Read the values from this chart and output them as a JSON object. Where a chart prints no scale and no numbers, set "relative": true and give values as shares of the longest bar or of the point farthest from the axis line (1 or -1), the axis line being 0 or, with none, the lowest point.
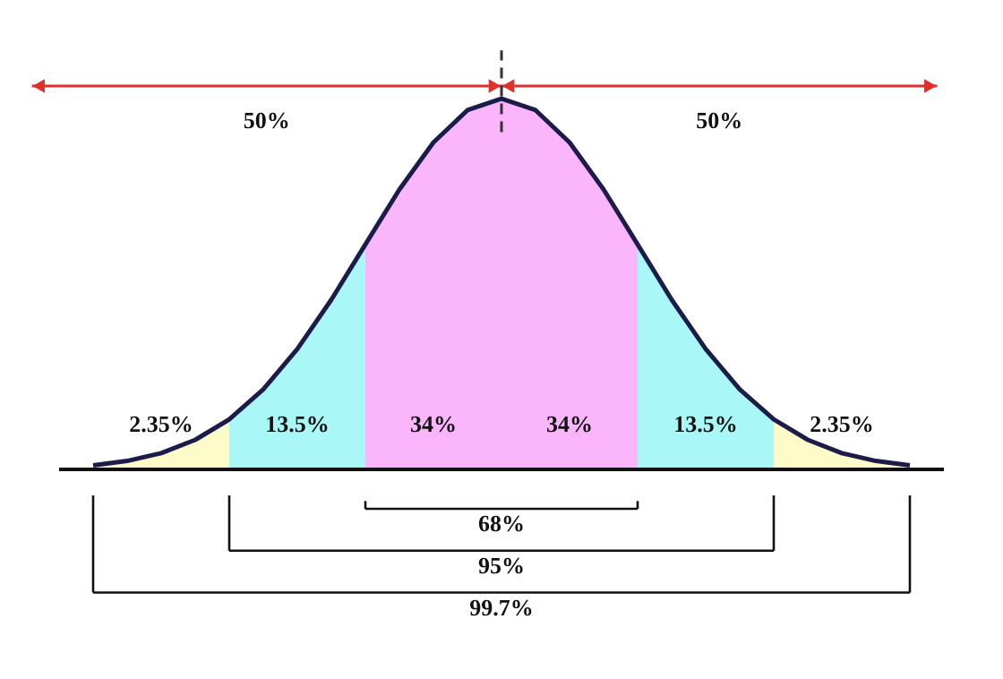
{
  "chart_data": {
    "type": "line",
    "relative": true,
    "tick_labels": false,
    "categories": [
      null,
      null,
      null,
      null,
      null,
      null,
      null,
      null,
      null,
      null,
      null,
      null,
      null,
      null,
      null,
      null,
      null,
      null,
      null,
      null,
      null,
      null,
      null,
      null,
      null
    ],
    "series": [
      {
        "type": "area",
        "name": "2.35%",
        "color": "#fdfbc8",
        "values": [
          0.011,
          0.023,
          0.044,
          0.08,
          0.135,
          null,
          null,
          null,
          null,
          null,
          null,
          null,
          null,
          null,
          null,
          null,
          null,
          null,
          null,
          null,
          null,
          null,
          null,
          null,
          null
        ]
      },
      {
        "type": "area",
        "name": "13.5%",
        "color": "#aaf7f7",
        "values": [
          null,
          null,
          null,
          null,
          0.135,
          0.216,
          0.325,
          0.458,
          0.607,
          null,
          null,
          null,
          null,
          null,
          null,
          null,
          null,
          null,
          null,
          null,
          null,
          null,
          null,
          null,
          null
        ]
      },
      {
        "type": "area",
        "name": "34%",
        "color": "#fbb6fb",
        "values": [
          null,
          null,
          null,
          null,
          null,
          null,
          null,
          null,
          0.607,
          0.755,
          0.882,
          0.969,
          1,
          null,
          null,
          null,
          null,
          null,
          null,
          null,
          null,
          null,
          null,
          null,
          null
        ]
      },
      {
        "type": "area",
        "name": "34%",
        "color": "#fbb6fb",
        "values": [
          null,
          null,
          null,
          null,
          null,
          null,
          null,
          null,
          null,
          null,
          null,
          null,
          1,
          0.969,
          0.882,
          0.755,
          0.607,
          null,
          null,
          null,
          null,
          null,
          null,
          null,
          null
        ]
      },
      {
        "type": "area",
        "name": "13.5%",
        "color": "#aaf7f7",
        "values": [
          null,
          null,
          null,
          null,
          null,
          null,
          null,
          null,
          null,
          null,
          null,
          null,
          null,
          null,
          null,
          null,
          0.607,
          0.458,
          0.325,
          0.216,
          0.135,
          null,
          null,
          null,
          null
        ]
      },
      {
        "type": "area",
        "name": "2.35%",
        "color": "#fdfbc8",
        "values": [
          null,
          null,
          null,
          null,
          null,
          null,
          null,
          null,
          null,
          null,
          null,
          null,
          null,
          null,
          null,
          null,
          null,
          null,
          null,
          null,
          0.135,
          0.08,
          0.044,
          0.023,
          0.011
        ]
      },
      {
        "color": "#1c1c4a",
        "line_style": "solid",
        "values": [
          0.011,
          0.023,
          0.044,
          0.08,
          0.135,
          0.216,
          0.325,
          0.458,
          0.607,
          0.755,
          0.882,
          0.969,
          1,
          0.969,
          0.882,
          0.755,
          0.607,
          0.458,
          0.325,
          0.216,
          0.135,
          0.08,
          0.044,
          0.023,
          0.011
        ]
      }
    ],
    "annotations": [
      "50%",
      "50%",
      "68%",
      "95%",
      "99.7%"
    ]
  }
}
